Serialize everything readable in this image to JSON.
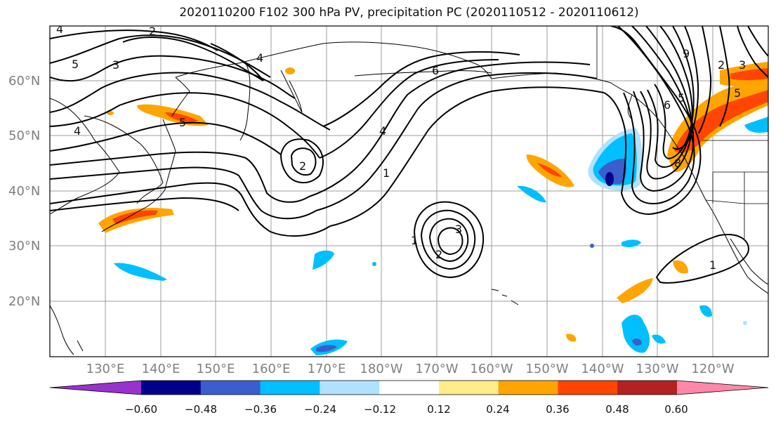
{
  "title": "2020110200 F102 300 hPa PV, precipitation PC (2020110512 - 2020110612)",
  "lat_labels": [
    "60°N",
    "50°N",
    "40°N",
    "30°N",
    "20°N"
  ],
  "lon_labels": [
    "130°E",
    "140°E",
    "150°E",
    "160°E",
    "170°E",
    "180°W",
    "170°W",
    "160°W",
    "150°W",
    "140°W",
    "130°W",
    "120°W"
  ],
  "colorbar": {
    "colors": [
      "#9932cc",
      "#00008b",
      "#3a5fcd",
      "#00bfff",
      "#b0e2ff",
      "#ffffff",
      "#ffec8b",
      "#ffa500",
      "#ff4500",
      "#b22222",
      "#ff88aa"
    ],
    "tick_labels": [
      "−0.60",
      "−0.48",
      "−0.36",
      "−0.24",
      "−0.12",
      "0.12",
      "0.24",
      "0.36",
      "0.48",
      "0.60"
    ]
  },
  "contour_labels": [
    "4",
    "2",
    "5",
    "3",
    "4",
    "6",
    "5",
    "4",
    "4",
    "2",
    "1",
    "3",
    "1",
    "2",
    "5",
    "6",
    "8",
    "9",
    "2",
    "3",
    "5",
    "1"
  ]
}
